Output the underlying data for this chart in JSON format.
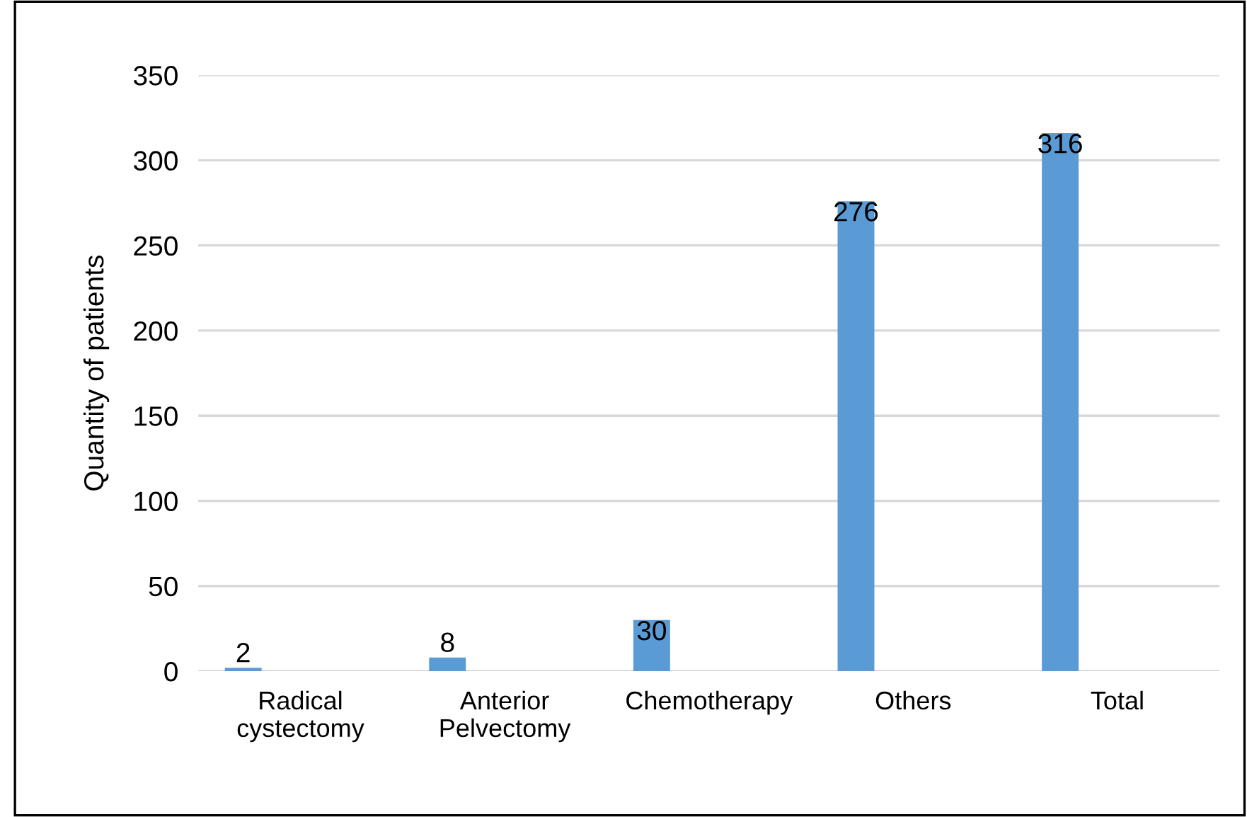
{
  "chart_data": {
    "type": "bar",
    "ylabel": "Quantity of patients",
    "categories": [
      "Radical\ncystectomy",
      "Anterior\nPelvectomy",
      "Chemotherapy",
      "Others",
      "Total"
    ],
    "values": [
      2,
      8,
      30,
      276,
      316
    ],
    "color": "#5b9bd5",
    "ylim": [
      0,
      350
    ],
    "yticks": [
      0,
      50,
      100,
      150,
      200,
      250,
      300,
      350
    ],
    "grid": "y",
    "data_labels": true
  }
}
